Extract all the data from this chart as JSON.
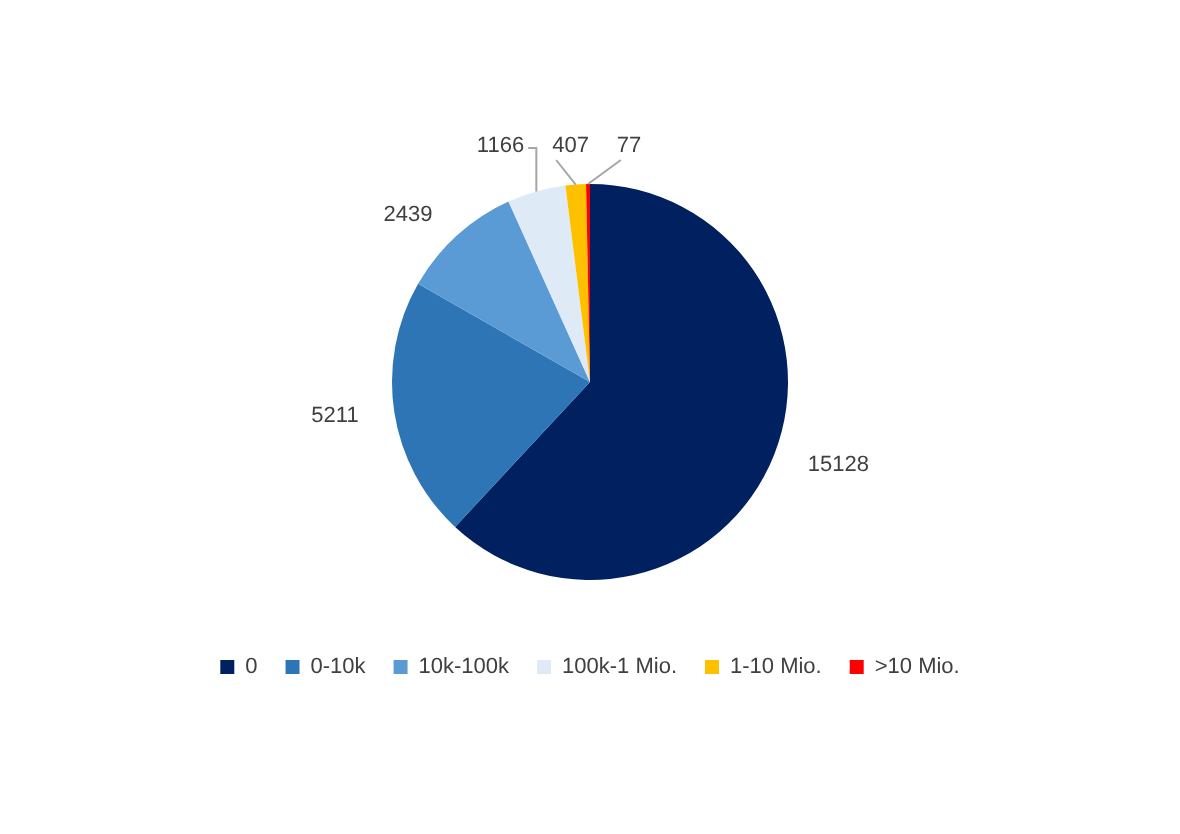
{
  "chart_data": {
    "type": "pie",
    "categories": [
      "0",
      "0-10k",
      "10k-100k",
      "100k-1 Mio.",
      "1-10 Mio.",
      ">10 Mio."
    ],
    "values": [
      15128,
      5211,
      2439,
      1166,
      407,
      77
    ],
    "colors": [
      "#002060",
      "#2e75b6",
      "#5b9bd5",
      "#deebf7",
      "#ffc000",
      "#ff0000"
    ],
    "data_labels": true,
    "legend": "bottom"
  }
}
